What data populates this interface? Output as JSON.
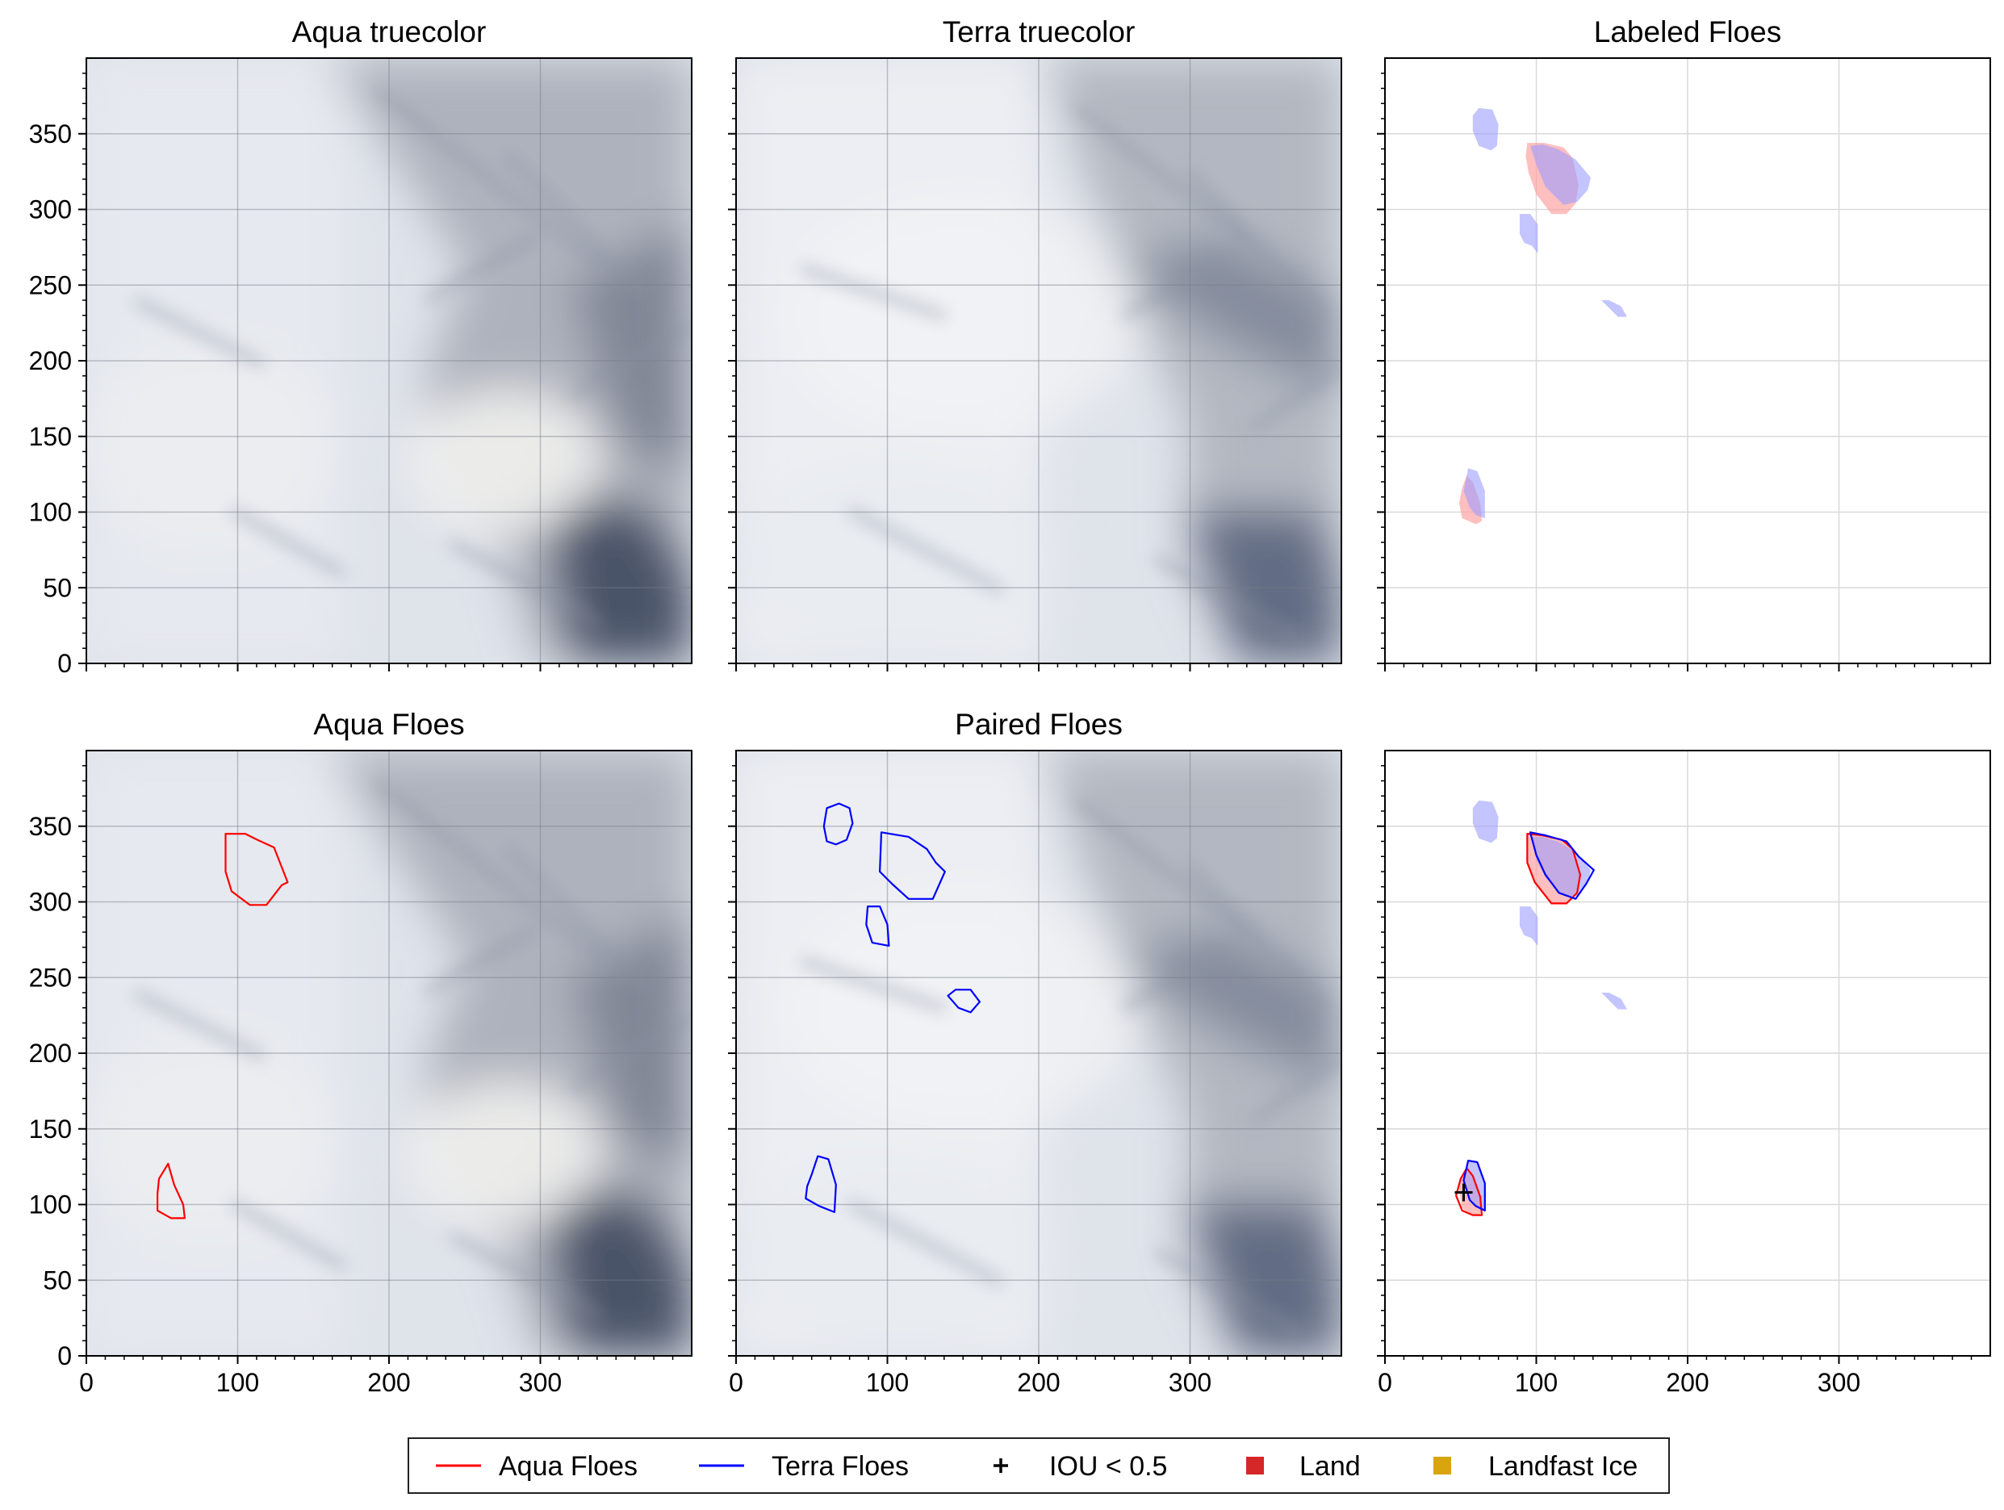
{
  "figure": {
    "background": "#ffffff",
    "colors": {
      "aqua": "#ff0000",
      "terra": "#0000ff",
      "aqua_fill": "#ff9c9c",
      "terra_fill": "#9c9cff",
      "land": "#d62728",
      "landfast": "#d8a50f",
      "grid": "#cfcfcf",
      "axis": "#000000"
    }
  },
  "legend": {
    "items": [
      {
        "label": "Aqua Floes",
        "marker": "line",
        "color": "#ff0000"
      },
      {
        "label": "Terra Floes",
        "marker": "line",
        "color": "#0000ff"
      },
      {
        "label": "IOU < 0.5",
        "marker": "plus",
        "color": "#000000"
      },
      {
        "label": "Land",
        "marker": "square",
        "color": "#d62728"
      },
      {
        "label": "Landfast Ice",
        "marker": "square",
        "color": "#d8a50f"
      }
    ]
  },
  "chart_data": [
    {
      "type": "image",
      "title": "Aqua truecolor",
      "image": "aqua-truecolor",
      "xlim": [
        0,
        400
      ],
      "ylim": [
        400,
        0
      ],
      "xticks": [
        0,
        100,
        200,
        300
      ],
      "yticks": [
        0,
        50,
        100,
        150,
        200,
        250,
        300,
        350
      ],
      "show_xticklabels": false,
      "show_yticklabels": true,
      "grid": true,
      "outlines": [],
      "filled": [],
      "markers": []
    },
    {
      "type": "image",
      "title": "Terra truecolor",
      "image": "terra-truecolor",
      "xlim": [
        0,
        400
      ],
      "ylim": [
        400,
        0
      ],
      "xticks": [
        0,
        100,
        200,
        300
      ],
      "yticks": [
        0,
        50,
        100,
        150,
        200,
        250,
        300,
        350
      ],
      "show_xticklabels": false,
      "show_yticklabels": false,
      "grid": true,
      "outlines": [],
      "filled": [],
      "markers": []
    },
    {
      "type": "image",
      "title": "Labeled Floes",
      "image": "none",
      "xlim": [
        0,
        400
      ],
      "ylim": [
        400,
        0
      ],
      "xticks": [
        0,
        100,
        200,
        300
      ],
      "yticks": [
        0,
        50,
        100,
        150,
        200,
        250,
        300,
        350
      ],
      "show_xticklabels": false,
      "show_yticklabels": false,
      "grid": true,
      "outlines": [],
      "filled": [
        {
          "series": "aqua",
          "points": [
            [
              60,
              92
            ],
            [
              64,
              94
            ],
            [
              63,
              106
            ],
            [
              58,
              120
            ],
            [
              54,
              124
            ],
            [
              51,
              116
            ],
            [
              49,
              106
            ],
            [
              51,
              96
            ]
          ]
        },
        {
          "series": "aqua",
          "points": [
            [
              95,
              324
            ],
            [
              100,
              310
            ],
            [
              110,
              297
            ],
            [
              120,
              297
            ],
            [
              126,
              304
            ],
            [
              128,
              316
            ],
            [
              124,
              334
            ],
            [
              118,
              341
            ],
            [
              105,
              344
            ],
            [
              94,
              344
            ],
            [
              93,
              335
            ]
          ]
        },
        {
          "series": "terra",
          "points": [
            [
              66,
              96
            ],
            [
              66,
              114
            ],
            [
              61,
              127
            ],
            [
              55,
              129
            ],
            [
              52,
              114
            ],
            [
              56,
              103
            ],
            [
              60,
              98
            ]
          ]
        },
        {
          "series": "terra",
          "points": [
            [
              147,
              236
            ],
            [
              154,
              229
            ],
            [
              160,
              229
            ],
            [
              156,
              236
            ],
            [
              148,
              240
            ],
            [
              143,
              240
            ]
          ]
        },
        {
          "series": "terra",
          "points": [
            [
              97,
              276
            ],
            [
              101,
              271
            ],
            [
              101,
              290
            ],
            [
              96,
              297
            ],
            [
              89,
              297
            ],
            [
              89,
              284
            ],
            [
              92,
              278
            ]
          ]
        },
        {
          "series": "terra",
          "points": [
            [
              101,
              327
            ],
            [
              106,
              315
            ],
            [
              118,
              303
            ],
            [
              127,
              305
            ],
            [
              134,
              313
            ],
            [
              136,
              321
            ],
            [
              126,
              333
            ],
            [
              114,
              340
            ],
            [
              104,
              343
            ],
            [
              96,
              342
            ]
          ]
        },
        {
          "series": "terra",
          "points": [
            [
              58,
              352
            ],
            [
              62,
              342
            ],
            [
              70,
              339
            ],
            [
              74,
              342
            ],
            [
              75,
              356
            ],
            [
              71,
              366
            ],
            [
              62,
              367
            ],
            [
              58,
              362
            ]
          ]
        }
      ],
      "markers": []
    },
    {
      "type": "image",
      "title": "Aqua Floes",
      "image": "aqua-truecolor",
      "xlim": [
        0,
        400
      ],
      "ylim": [
        400,
        0
      ],
      "xticks": [
        0,
        100,
        200,
        300
      ],
      "yticks": [
        0,
        50,
        100,
        150,
        200,
        250,
        300,
        350
      ],
      "show_xticklabels": true,
      "show_yticklabels": true,
      "grid": true,
      "outlines": [
        {
          "series": "aqua",
          "points": [
            [
              47,
              96
            ],
            [
              56,
              91
            ],
            [
              65,
              91
            ],
            [
              64,
              100
            ],
            [
              58,
              113
            ],
            [
              54,
              127
            ],
            [
              48,
              117
            ],
            [
              47,
              107
            ]
          ]
        },
        {
          "series": "aqua",
          "points": [
            [
              92,
              320
            ],
            [
              96,
              307
            ],
            [
              108,
              298
            ],
            [
              119,
              298
            ],
            [
              129,
              311
            ],
            [
              133,
              313
            ],
            [
              124,
              336
            ],
            [
              113,
              341
            ],
            [
              105,
              345
            ],
            [
              92,
              345
            ]
          ]
        }
      ],
      "filled": [],
      "markers": []
    },
    {
      "type": "image",
      "title": "Paired Floes",
      "image": "terra-truecolor",
      "xlim": [
        0,
        400
      ],
      "ylim": [
        400,
        0
      ],
      "xticks": [
        0,
        100,
        200,
        300
      ],
      "yticks": [
        0,
        50,
        100,
        150,
        200,
        250,
        300,
        350
      ],
      "show_xticklabels": true,
      "show_yticklabels": false,
      "grid": true,
      "outlines": [
        {
          "series": "terra",
          "points": [
            [
              46,
              104
            ],
            [
              55,
              99
            ],
            [
              65,
              95
            ],
            [
              66,
              113
            ],
            [
              61,
              130
            ],
            [
              54,
              132
            ],
            [
              50,
              120
            ],
            [
              47,
              112
            ]
          ]
        },
        {
          "series": "terra",
          "points": [
            [
              140,
              238
            ],
            [
              147,
              230
            ],
            [
              155,
              227
            ],
            [
              161,
              234
            ],
            [
              155,
              242
            ],
            [
              145,
              242
            ]
          ]
        },
        {
          "series": "terra",
          "points": [
            [
              86,
              285
            ],
            [
              90,
              273
            ],
            [
              101,
              271
            ],
            [
              100,
              285
            ],
            [
              95,
              297
            ],
            [
              87,
              297
            ]
          ]
        },
        {
          "series": "terra",
          "points": [
            [
              95,
              320
            ],
            [
              103,
              312
            ],
            [
              114,
              302
            ],
            [
              130,
              302
            ],
            [
              138,
              320
            ],
            [
              132,
              326
            ],
            [
              126,
              335
            ],
            [
              114,
              343
            ],
            [
              96,
              346
            ]
          ]
        },
        {
          "series": "terra",
          "points": [
            [
              60,
              340
            ],
            [
              66,
              338
            ],
            [
              73,
              341
            ],
            [
              77,
              352
            ],
            [
              75,
              362
            ],
            [
              68,
              365
            ],
            [
              60,
              362
            ],
            [
              58,
              350
            ]
          ]
        }
      ],
      "filled": [],
      "markers": []
    },
    {
      "type": "image",
      "title": "",
      "image": "none",
      "xlim": [
        0,
        400
      ],
      "ylim": [
        400,
        0
      ],
      "xticks": [
        0,
        100,
        200,
        300
      ],
      "yticks": [
        0,
        50,
        100,
        150,
        200,
        250,
        300,
        350
      ],
      "show_xticklabels": true,
      "show_yticklabels": false,
      "grid": true,
      "outlines": [
        {
          "series": "aqua",
          "points": [
            [
              47,
              106
            ],
            [
              51,
              96
            ],
            [
              58,
              93
            ],
            [
              64,
              93
            ],
            [
              63,
              105
            ],
            [
              58,
              119
            ],
            [
              54,
              124
            ],
            [
              50,
              117
            ]
          ]
        },
        {
          "series": "aqua",
          "points": [
            [
              94,
              326
            ],
            [
              99,
              313
            ],
            [
              110,
              299
            ],
            [
              120,
              299
            ],
            [
              127,
              306
            ],
            [
              129,
              318
            ],
            [
              124,
              335
            ],
            [
              117,
              341
            ],
            [
              104,
              344
            ],
            [
              94,
              345
            ]
          ]
        },
        {
          "series": "terra",
          "points": [
            [
              56,
              103
            ],
            [
              60,
              99
            ],
            [
              66,
              96
            ],
            [
              66,
              114
            ],
            [
              61,
              128
            ],
            [
              55,
              129
            ],
            [
              52,
              116
            ]
          ]
        },
        {
          "series": "terra",
          "points": [
            [
              96,
              346
            ],
            [
              100,
              331
            ],
            [
              106,
              318
            ],
            [
              115,
              306
            ],
            [
              126,
              302
            ],
            [
              133,
              312
            ],
            [
              138,
              321
            ],
            [
              128,
              330
            ],
            [
              120,
              340
            ],
            [
              106,
              344
            ]
          ]
        }
      ],
      "filled": [
        {
          "series": "aqua",
          "points": [
            [
              49,
              110
            ],
            [
              51,
              98
            ],
            [
              56,
              93
            ],
            [
              63,
              93
            ],
            [
              63,
              106
            ],
            [
              58,
              118
            ],
            [
              54,
              123
            ],
            [
              50,
              118
            ]
          ]
        },
        {
          "series": "aqua",
          "points": [
            [
              94,
              326
            ],
            [
              99,
              313
            ],
            [
              110,
              299
            ],
            [
              120,
              299
            ],
            [
              127,
              306
            ],
            [
              129,
              318
            ],
            [
              124,
              335
            ],
            [
              117,
              341
            ],
            [
              104,
              344
            ],
            [
              94,
              345
            ]
          ]
        },
        {
          "series": "terra",
          "points": [
            [
              56,
              103
            ],
            [
              60,
              99
            ],
            [
              66,
              96
            ],
            [
              66,
              114
            ],
            [
              61,
              128
            ],
            [
              55,
              129
            ],
            [
              52,
              116
            ]
          ]
        },
        {
          "series": "terra",
          "points": [
            [
              147,
              236
            ],
            [
              154,
              229
            ],
            [
              160,
              229
            ],
            [
              156,
              236
            ],
            [
              148,
              240
            ],
            [
              143,
              240
            ]
          ]
        },
        {
          "series": "terra",
          "points": [
            [
              97,
              276
            ],
            [
              101,
              271
            ],
            [
              101,
              290
            ],
            [
              96,
              297
            ],
            [
              89,
              297
            ],
            [
              89,
              284
            ],
            [
              92,
              278
            ]
          ]
        },
        {
          "series": "terra",
          "points": [
            [
              100,
              328
            ],
            [
              106,
              316
            ],
            [
              118,
              304
            ],
            [
              127,
              304
            ],
            [
              134,
              313
            ],
            [
              136,
              321
            ],
            [
              126,
              333
            ],
            [
              114,
              340
            ],
            [
              104,
              343
            ],
            [
              97,
              343
            ]
          ]
        },
        {
          "series": "terra",
          "points": [
            [
              58,
              352
            ],
            [
              62,
              342
            ],
            [
              70,
              339
            ],
            [
              74,
              342
            ],
            [
              75,
              356
            ],
            [
              71,
              366
            ],
            [
              62,
              367
            ],
            [
              58,
              362
            ]
          ]
        }
      ],
      "markers": [
        {
          "type": "plus",
          "x": 52,
          "y": 108,
          "color": "#000000"
        }
      ]
    }
  ]
}
